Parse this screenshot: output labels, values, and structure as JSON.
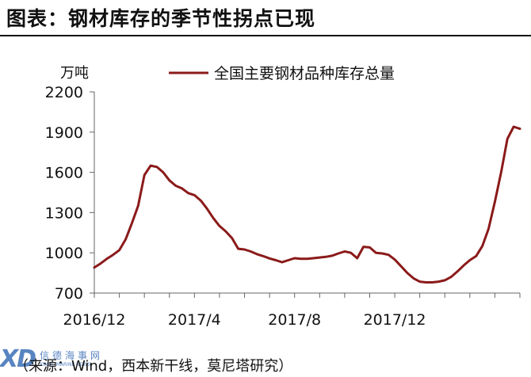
{
  "title": "图表：钢材库存的季节性拐点已现",
  "source": "（来源：Wind，西本新干线，莫尼塔研究）",
  "watermark": {
    "logo": "XD",
    "text_cn": "信德海事网",
    "text_en": "XINDE MARINE NEWS"
  },
  "colors": {
    "series": "#8b1a1a",
    "axis": "#666666",
    "text": "#111111"
  },
  "chart_data": {
    "type": "line",
    "unit_label": "万吨",
    "ylim": [
      700,
      2200
    ],
    "yticks": [
      "2200",
      "1900",
      "1600",
      "1300",
      "1000",
      "700"
    ],
    "xtick_labels": [
      "2016/12",
      "2017/4",
      "2017/8",
      "2017/12"
    ],
    "grid": false,
    "legend_position": "top",
    "series": [
      {
        "name": "全国主要钢材品种库存总量",
        "values": [
          890,
          920,
          955,
          985,
          1020,
          1100,
          1220,
          1350,
          1580,
          1650,
          1640,
          1600,
          1540,
          1500,
          1480,
          1445,
          1430,
          1390,
          1330,
          1260,
          1200,
          1160,
          1110,
          1030,
          1025,
          1010,
          990,
          975,
          958,
          945,
          930,
          945,
          960,
          955,
          955,
          960,
          965,
          970,
          978,
          995,
          1010,
          1000,
          960,
          1045,
          1040,
          1000,
          995,
          985,
          950,
          900,
          850,
          810,
          785,
          780,
          780,
          785,
          795,
          820,
          860,
          905,
          945,
          975,
          1050,
          1180,
          1380,
          1600,
          1850,
          1940,
          1925
        ]
      }
    ]
  }
}
